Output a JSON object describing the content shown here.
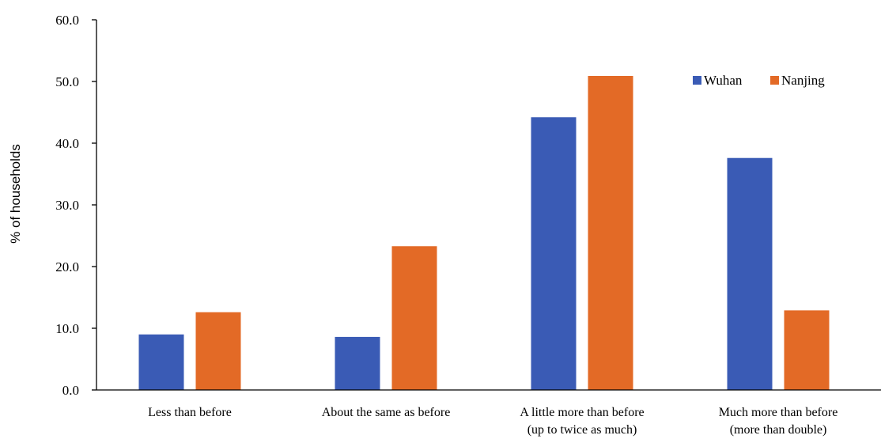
{
  "chart_data": {
    "type": "bar",
    "ylabel": "% of households",
    "xlabel": "",
    "ylim": [
      0,
      60
    ],
    "yticks": [
      "0.0",
      "10.0",
      "20.0",
      "30.0",
      "40.0",
      "50.0",
      "60.0"
    ],
    "grid": false,
    "legend_position": "top-right",
    "categories": [
      [
        "Less than before"
      ],
      [
        "About the same as before"
      ],
      [
        "A little more than before",
        "(up to twice as much)"
      ],
      [
        "Much more than before",
        "(more than double)"
      ]
    ],
    "series": [
      {
        "name": "Wuhan",
        "color": "#3A5BB5",
        "values": [
          9.0,
          8.6,
          44.2,
          37.6
        ]
      },
      {
        "name": "Nanjing",
        "color": "#E36A26",
        "values": [
          12.6,
          23.3,
          50.9,
          12.9
        ]
      }
    ]
  }
}
